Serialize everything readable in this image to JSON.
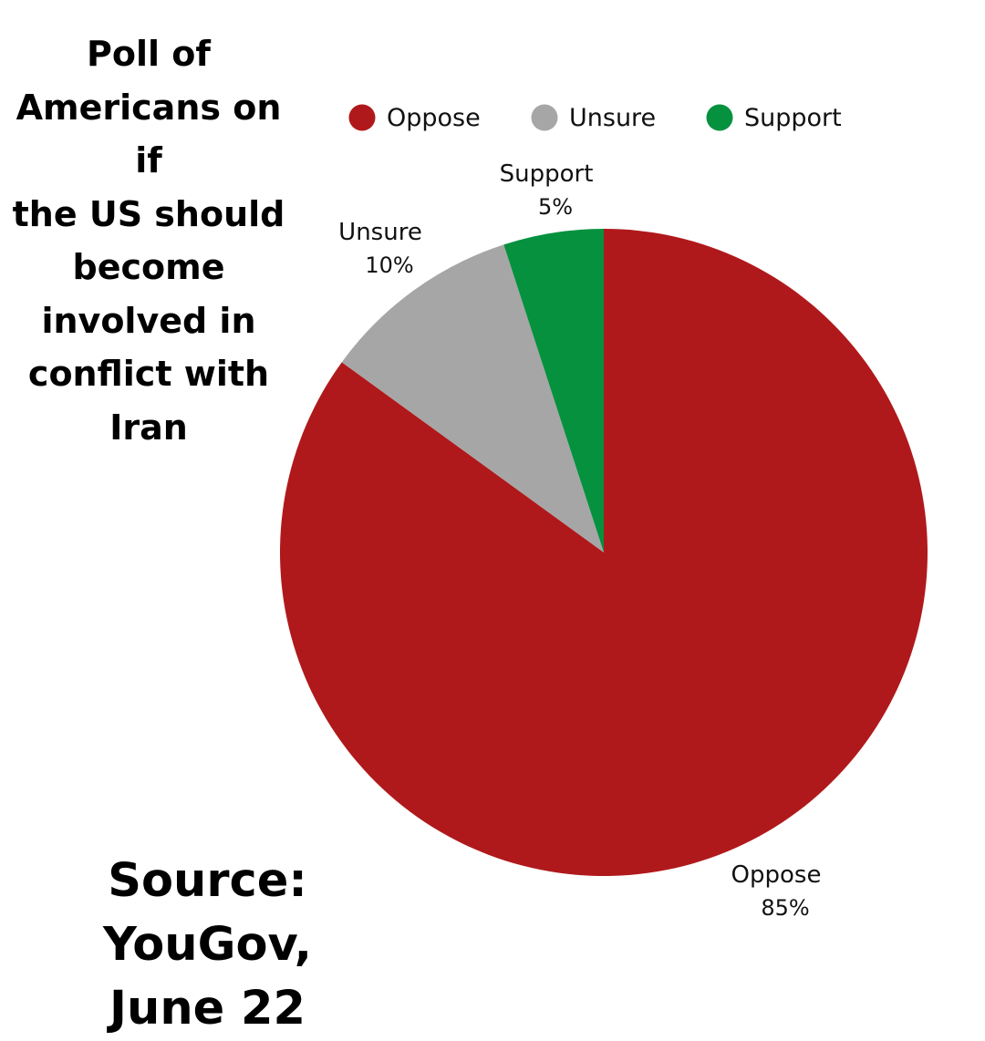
{
  "colors": {
    "oppose": "#b0191b",
    "unsure": "#a6a6a6",
    "support": "#06913f"
  },
  "title_text": "Poll of Americans on if the US should become involved in conflict with Iran",
  "title_lines": [
    "Poll of",
    "Americans on if",
    "the US should",
    "become",
    "involved in",
    "conflict with",
    "Iran"
  ],
  "source_lines": [
    "Source: YouGov,",
    "June 22"
  ],
  "chart_data": {
    "type": "pie",
    "title": "Poll of Americans on if the US should become involved in conflict with Iran",
    "categories": [
      "Oppose",
      "Unsure",
      "Support"
    ],
    "values": [
      85,
      10,
      5
    ],
    "value_labels": [
      "85%",
      "10%",
      "5%"
    ],
    "legend": {
      "placement": "top",
      "entries": [
        "Oppose",
        "Unsure",
        "Support"
      ]
    }
  }
}
